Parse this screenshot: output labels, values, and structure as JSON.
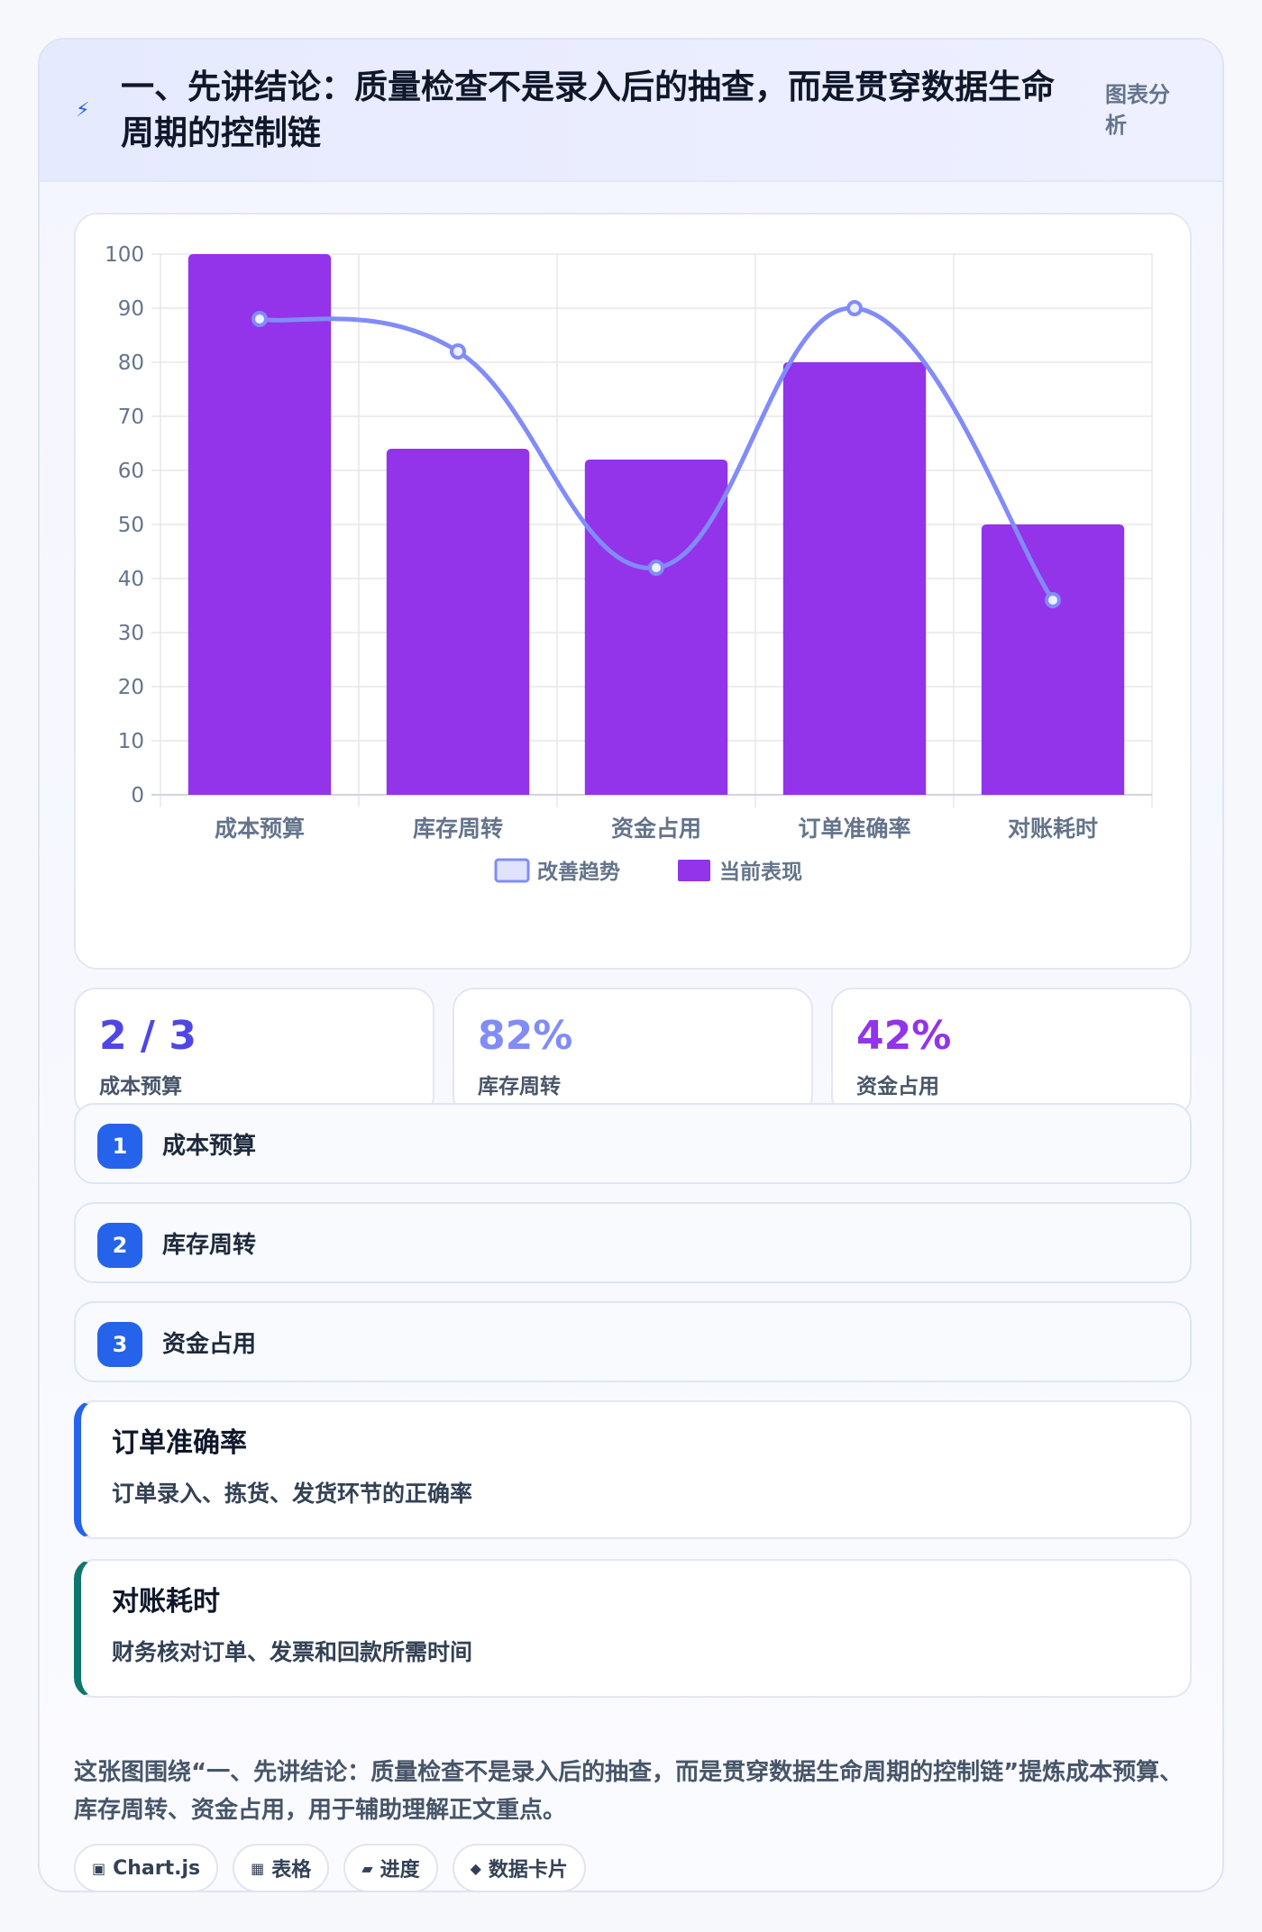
{
  "header": {
    "bolt_icon": "⚡",
    "title": "一、先讲结论：质量检查不是录入后的抽查，而是贯穿数据生命周期的控制链",
    "tag": "图表分析"
  },
  "chart_data": {
    "type": "bar",
    "categories": [
      "成本预算",
      "库存周转",
      "资金占用",
      "订单准确率",
      "对账耗时"
    ],
    "series": [
      {
        "name": "改善趋势",
        "type": "line",
        "values": [
          88,
          82,
          42,
          90,
          36
        ],
        "color": "#818cf8"
      },
      {
        "name": "当前表现",
        "type": "bar",
        "values": [
          100,
          64,
          62,
          80,
          50
        ],
        "color": "#9333ea"
      }
    ],
    "ylim": [
      0,
      100
    ],
    "yticks": [
      0,
      10,
      20,
      30,
      40,
      50,
      60,
      70,
      80,
      90,
      100
    ],
    "grid": true,
    "legend": "bottom"
  },
  "stats": [
    {
      "value": "2 / 3",
      "label": "成本预算",
      "color": "#4f46e5"
    },
    {
      "value": "82%",
      "label": "库存周转",
      "color": "#818cf8"
    },
    {
      "value": "42%",
      "label": "资金占用",
      "color": "#9333ea"
    }
  ],
  "list": [
    {
      "num": "1",
      "label": "成本预算"
    },
    {
      "num": "2",
      "label": "库存周转"
    },
    {
      "num": "3",
      "label": "资金占用"
    }
  ],
  "info": [
    {
      "title": "订单准确率",
      "desc": "订单录入、拣货、发货环节的正确率",
      "accent": "#2563eb"
    },
    {
      "title": "对账耗时",
      "desc": "财务核对订单、发票和回款所需时间",
      "accent": "#0f766e"
    }
  ],
  "caption": "这张图围绕“一、先讲结论：质量检查不是录入后的抽查，而是贯穿数据生命周期的控制链”提炼成本预算、库存周转、资金占用，用于辅助理解正文重点。",
  "chips": [
    {
      "icon": "▣",
      "label": "Chart.js"
    },
    {
      "icon": "▦",
      "label": "表格"
    },
    {
      "icon": "▰",
      "label": "进度"
    },
    {
      "icon": "◆",
      "label": "数据卡片"
    }
  ]
}
